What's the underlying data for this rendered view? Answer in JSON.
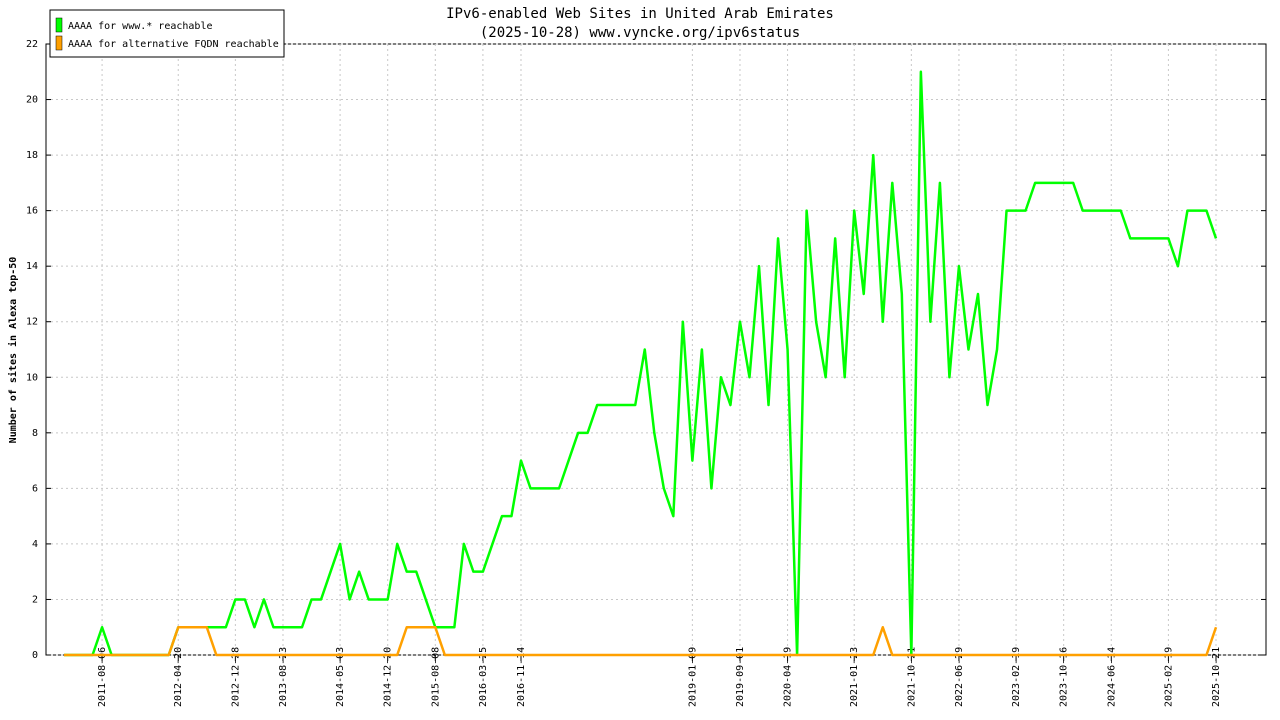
{
  "chart_data": {
    "type": "line",
    "title": "IPv6-enabled Web Sites in United Arab Emirates",
    "subtitle": "(2025-10-28) www.vyncke.org/ipv6status",
    "y_label": "Number of sites in Alexa top-50",
    "categories": [
      null,
      null,
      null,
      null,
      "2011-08-06",
      null,
      null,
      null,
      null,
      null,
      null,
      null,
      "2012-04-20",
      null,
      null,
      null,
      null,
      null,
      "2012-12-28",
      null,
      null,
      null,
      null,
      "2013-08-23",
      null,
      null,
      null,
      null,
      null,
      "2014-05-03",
      null,
      null,
      null,
      null,
      "2014-12-20",
      null,
      null,
      null,
      null,
      "2015-08-08",
      null,
      null,
      null,
      null,
      "2016-03-25",
      null,
      null,
      null,
      "2016-11-14",
      null,
      null,
      null,
      null,
      null,
      null,
      null,
      null,
      null,
      null,
      null,
      null,
      null,
      null,
      null,
      null,
      null,
      "2019-01-09",
      null,
      null,
      null,
      null,
      "2019-09-01",
      null,
      null,
      null,
      null,
      "2020-04-19",
      null,
      null,
      null,
      null,
      null,
      null,
      "2021-01-23",
      null,
      null,
      null,
      null,
      null,
      "2021-10-21",
      null,
      null,
      null,
      null,
      "2022-06-29",
      null,
      null,
      null,
      null,
      null,
      "2023-02-19",
      null,
      null,
      null,
      null,
      "2023-10-16",
      null,
      null,
      null,
      null,
      "2024-06-14",
      null,
      null,
      null,
      null,
      null,
      "2025-02-19",
      null,
      null,
      null,
      null,
      "2025-10-21"
    ],
    "series": [
      {
        "name": "AAAA for www.* reachable",
        "color": "#00ff00",
        "values": [
          0,
          0,
          0,
          0,
          1,
          0,
          0,
          0,
          0,
          0,
          0,
          0,
          1,
          1,
          1,
          1,
          1,
          1,
          2,
          2,
          1,
          2,
          1,
          1,
          1,
          1,
          2,
          2,
          3,
          4,
          2,
          3,
          2,
          2,
          2,
          4,
          3,
          3,
          2,
          1,
          1,
          1,
          4,
          3,
          3,
          4,
          5,
          5,
          7,
          6,
          6,
          6,
          6,
          7,
          8,
          8,
          9,
          9,
          9,
          9,
          9,
          11,
          8,
          6,
          5,
          12,
          7,
          11,
          6,
          10,
          9,
          12,
          10,
          14,
          9,
          15,
          11,
          0,
          16,
          12,
          10,
          15,
          10,
          16,
          13,
          18,
          12,
          17,
          13,
          0,
          21,
          12,
          17,
          10,
          14,
          11,
          13,
          9,
          11,
          16,
          16,
          16,
          17,
          17,
          17,
          17,
          17,
          16,
          16,
          16,
          16,
          16,
          15,
          15,
          15,
          15,
          15,
          14,
          16,
          16,
          16,
          15
        ]
      },
      {
        "name": "AAAA for alternative FQDN reachable",
        "color": "#ffa000",
        "values": [
          0,
          0,
          0,
          0,
          0,
          0,
          0,
          0,
          0,
          0,
          0,
          0,
          1,
          1,
          1,
          1,
          0,
          0,
          0,
          0,
          0,
          0,
          0,
          0,
          0,
          0,
          0,
          0,
          0,
          0,
          0,
          0,
          0,
          0,
          0,
          0,
          1,
          1,
          1,
          1,
          0,
          0,
          0,
          0,
          0,
          0,
          0,
          0,
          0,
          0,
          0,
          0,
          0,
          0,
          0,
          0,
          0,
          0,
          0,
          0,
          0,
          0,
          0,
          0,
          0,
          0,
          0,
          0,
          0,
          0,
          0,
          0,
          0,
          0,
          0,
          0,
          0,
          0,
          0,
          0,
          0,
          0,
          0,
          0,
          0,
          0,
          1,
          0,
          0,
          0,
          0,
          0,
          0,
          0,
          0,
          0,
          0,
          0,
          0,
          0,
          0,
          0,
          0,
          0,
          0,
          0,
          0,
          0,
          0,
          0,
          0,
          0,
          0,
          0,
          0,
          0,
          0,
          0,
          0,
          0,
          0,
          1
        ]
      }
    ],
    "ylim": [
      0,
      22
    ],
    "yticks": [
      0,
      2,
      4,
      6,
      8,
      10,
      12,
      14,
      16,
      18,
      20,
      22
    ],
    "grid": true,
    "legend": "top-left"
  }
}
